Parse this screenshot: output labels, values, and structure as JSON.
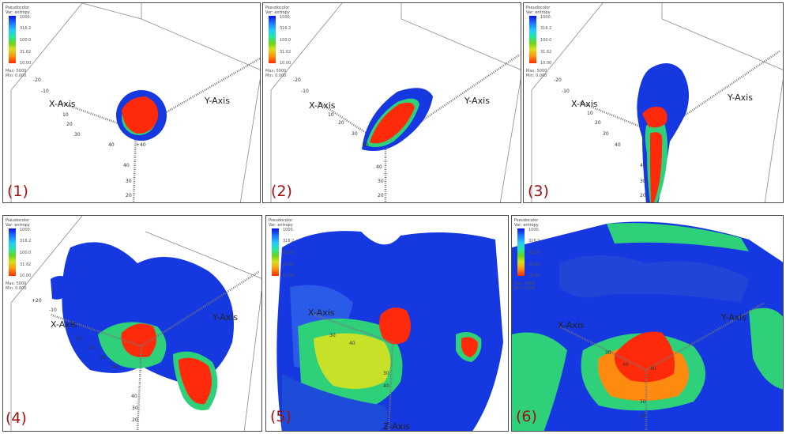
{
  "legend": {
    "title": "Pseudocolor",
    "var": "Var: entropy",
    "ticks": [
      "1000.",
      "316.2",
      "100.0",
      "31.62",
      "10.00"
    ],
    "max": "Max: 5000",
    "min": "Min: 0.000"
  },
  "panels": [
    {
      "label": "(1)",
      "axes": {
        "x": "X-Axis",
        "y": "Y-Axis",
        "z": ""
      },
      "ticks": [
        "-20",
        "-10",
        "10",
        "20",
        "30",
        "40",
        "+40",
        "40",
        "30",
        "20"
      ]
    },
    {
      "label": "(2)",
      "axes": {
        "x": "X-Axis",
        "y": "Y-Axis",
        "z": ""
      },
      "ticks": [
        "-20",
        "-10",
        "10",
        "20",
        "30",
        "40",
        "40",
        "30",
        "20"
      ]
    },
    {
      "label": "(3)",
      "axes": {
        "x": "X-Axis",
        "y": "Y-Axis",
        "z": ""
      },
      "ticks": [
        "-20",
        "-10",
        "10",
        "20",
        "30",
        "40",
        "40",
        "30",
        "20"
      ]
    },
    {
      "label": "(4)",
      "axes": {
        "x": "X-Axis",
        "y": "Y-Axis",
        "z": ""
      },
      "ticks": [
        "+20",
        "-10",
        "10",
        "20",
        "30",
        "40",
        "40",
        "30",
        "20"
      ]
    },
    {
      "label": "(5)",
      "axes": {
        "x": "X-Axis",
        "y": "",
        "z": "Z-Axis"
      },
      "ticks": [
        "30",
        "40",
        "30",
        "40"
      ]
    },
    {
      "label": "(6)",
      "axes": {
        "x": "X-Axis",
        "y": "Y-Axis",
        "z": ""
      },
      "ticks": [
        "30",
        "40",
        "40",
        "30",
        "20"
      ]
    }
  ],
  "colors": {
    "outer": "#1638e0",
    "mid": "#2ed07a",
    "core": "#ff2a0a",
    "frame": "#4a4a4a",
    "number": "#a01010"
  }
}
